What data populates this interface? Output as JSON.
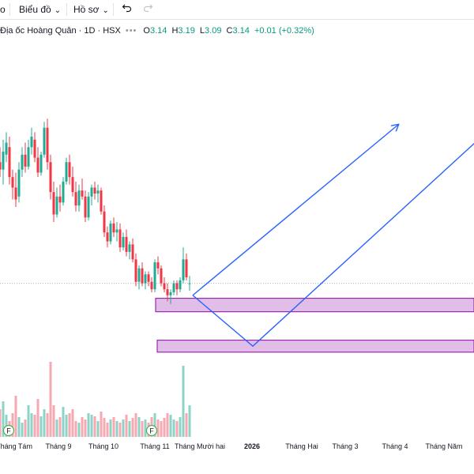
{
  "toolbar": {
    "left_fragment": "o",
    "chart_menu": "Biểu đồ",
    "profile_menu": "Hồ sơ",
    "undo_icon": "undo-icon",
    "redo_icon": "redo-icon"
  },
  "legend": {
    "symbol": "Địa ốc Hoàng Quân · 1D · HSX",
    "open_label": "O",
    "open": "3.14",
    "high_label": "H",
    "high": "3.19",
    "low_label": "L",
    "low": "3.09",
    "close_label": "C",
    "close": "3.14",
    "change": "+0.01 (+0.32%)",
    "up_color": "#089981"
  },
  "colors": {
    "up": "#22ab94",
    "down": "#f23645",
    "vol_up": "#8fd3c8",
    "vol_down": "#f7a8b0",
    "arrow": "#2962ff",
    "zone_fill": "#e1bee7",
    "zone_border": "#9c27b0",
    "hline": "#b2b5be"
  },
  "x_axis": {
    "labels": [
      "Tháng Tám",
      "Tháng 9",
      "Tháng 10",
      "Tháng 11",
      "Tháng Mười hai",
      "2026",
      "Tháng Hai",
      "Tháng 3",
      "Tháng 4",
      "Tháng Năm"
    ],
    "bold": "2026"
  },
  "markers": [
    "F",
    "F"
  ],
  "chart_data": {
    "type": "candlestick",
    "title": "Địa ốc Hoàng Quân · 1D · HSX",
    "last_ohlc": {
      "open": 3.14,
      "high": 3.19,
      "low": 3.09,
      "close": 3.14
    },
    "ylim": [
      2.8,
      4.4
    ],
    "candles": [
      [
        3.95,
        4.05,
        3.85,
        3.9
      ],
      [
        3.9,
        4.1,
        3.8,
        4.02
      ],
      [
        4.0,
        4.15,
        3.95,
        4.08
      ],
      [
        4.05,
        4.12,
        3.8,
        3.85
      ],
      [
        3.85,
        3.9,
        3.7,
        3.78
      ],
      [
        3.78,
        3.88,
        3.65,
        3.7
      ],
      [
        3.72,
        3.95,
        3.68,
        3.9
      ],
      [
        3.9,
        4.05,
        3.85,
        4.0
      ],
      [
        4.0,
        4.08,
        3.88,
        3.92
      ],
      [
        3.92,
        4.1,
        3.9,
        4.05
      ],
      [
        4.05,
        4.18,
        4.0,
        4.12
      ],
      [
        4.1,
        4.15,
        3.95,
        3.98
      ],
      [
        3.98,
        4.05,
        3.85,
        3.88
      ],
      [
        3.88,
        4.02,
        3.86,
        4.0
      ],
      [
        4.0,
        4.22,
        3.98,
        4.18
      ],
      [
        4.18,
        4.24,
        3.9,
        3.95
      ],
      [
        3.95,
        4.0,
        3.7,
        3.75
      ],
      [
        3.75,
        3.82,
        3.55,
        3.6
      ],
      [
        3.6,
        3.78,
        3.58,
        3.72
      ],
      [
        3.72,
        3.8,
        3.62,
        3.68
      ],
      [
        3.68,
        3.85,
        3.66,
        3.82
      ],
      [
        3.82,
        3.98,
        3.8,
        3.95
      ],
      [
        3.95,
        4.0,
        3.8,
        3.85
      ],
      [
        3.85,
        3.92,
        3.72,
        3.75
      ],
      [
        3.75,
        3.82,
        3.62,
        3.66
      ],
      [
        3.66,
        3.8,
        3.62,
        3.76
      ],
      [
        3.76,
        3.84,
        3.7,
        3.72
      ],
      [
        3.72,
        3.76,
        3.55,
        3.58
      ],
      [
        3.58,
        3.75,
        3.56,
        3.72
      ],
      [
        3.72,
        3.8,
        3.66,
        3.78
      ],
      [
        3.78,
        3.82,
        3.7,
        3.74
      ],
      [
        3.74,
        3.8,
        3.68,
        3.76
      ],
      [
        3.76,
        3.78,
        3.6,
        3.62
      ],
      [
        3.62,
        3.66,
        3.45,
        3.48
      ],
      [
        3.48,
        3.52,
        3.38,
        3.42
      ],
      [
        3.42,
        3.56,
        3.4,
        3.54
      ],
      [
        3.54,
        3.58,
        3.45,
        3.48
      ],
      [
        3.48,
        3.55,
        3.42,
        3.5
      ],
      [
        3.5,
        3.54,
        3.35,
        3.38
      ],
      [
        3.38,
        3.48,
        3.36,
        3.45
      ],
      [
        3.45,
        3.5,
        3.32,
        3.35
      ],
      [
        3.35,
        3.42,
        3.3,
        3.4
      ],
      [
        3.4,
        3.44,
        3.28,
        3.3
      ],
      [
        3.3,
        3.34,
        3.12,
        3.15
      ],
      [
        3.15,
        3.26,
        3.1,
        3.24
      ],
      [
        3.24,
        3.28,
        3.12,
        3.14
      ],
      [
        3.14,
        3.22,
        3.1,
        3.2
      ],
      [
        3.2,
        3.22,
        3.12,
        3.15
      ],
      [
        3.15,
        3.18,
        3.08,
        3.1
      ],
      [
        3.1,
        3.3,
        3.08,
        3.28
      ],
      [
        3.28,
        3.32,
        3.2,
        3.24
      ],
      [
        3.24,
        3.26,
        3.12,
        3.14
      ],
      [
        3.14,
        3.18,
        3.08,
        3.1
      ],
      [
        3.1,
        3.14,
        3.02,
        3.06
      ],
      [
        3.06,
        3.1,
        3.0,
        3.08
      ],
      [
        3.08,
        3.16,
        3.06,
        3.14
      ],
      [
        3.14,
        3.16,
        3.06,
        3.1
      ],
      [
        3.1,
        3.18,
        3.08,
        3.16
      ],
      [
        3.16,
        3.38,
        3.14,
        3.3
      ],
      [
        3.3,
        3.34,
        3.16,
        3.18
      ],
      [
        3.14,
        3.19,
        3.09,
        3.14
      ]
    ],
    "volume": [
      35,
      45,
      28,
      20,
      30,
      52,
      25,
      18,
      22,
      40,
      30,
      28,
      48,
      26,
      35,
      30,
      95,
      40,
      22,
      25,
      38,
      28,
      30,
      35,
      20,
      18,
      25,
      22,
      30,
      28,
      26,
      20,
      32,
      24,
      18,
      22,
      25,
      20,
      18,
      22,
      28,
      20,
      24,
      30,
      25,
      20,
      22,
      18,
      25,
      30,
      22,
      20,
      24,
      30,
      28,
      22,
      20,
      25,
      90,
      30,
      40
    ],
    "zones": [
      {
        "from": 3.04,
        "to": 2.95
      },
      {
        "from": 2.76,
        "to": 2.68
      }
    ],
    "projections": [
      [
        {
          "t": 61,
          "p": 3.06
        },
        {
          "t": 126,
          "p": 4.2
        }
      ],
      [
        {
          "t": 61,
          "p": 3.06
        },
        {
          "t": 80,
          "p": 2.72
        },
        {
          "t": 155,
          "p": 4.17
        }
      ]
    ],
    "last_price_line": 3.14
  }
}
